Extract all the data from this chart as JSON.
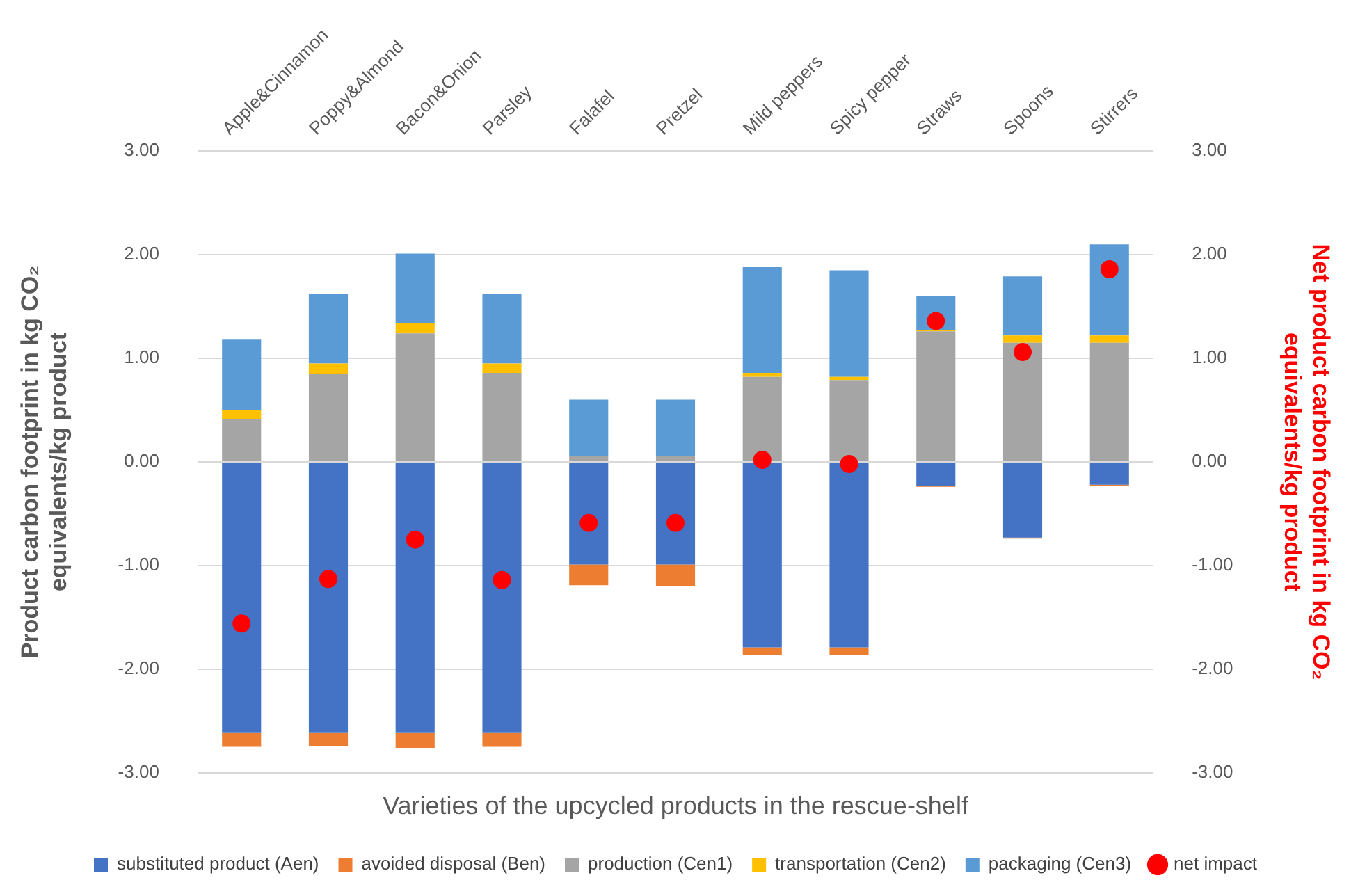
{
  "chart_data": {
    "type": "bar",
    "stacked": true,
    "xlabel": "Varieties of the upcycled products in the rescue-shelf",
    "ylabel": "Product carbon footprint in kg CO₂ equivalents/kg product",
    "y2label": "Net product carbon footprint in kg CO₂ equivalents/kg product",
    "categories": [
      "Apple&Cinnamon",
      "Poppy&Almond",
      "Bacon&Onion",
      "Parsley",
      "Falafel",
      "Pretzel",
      "Mild peppers",
      "Spicy pepper",
      "Straws",
      "Spoons",
      "Stirrers"
    ],
    "series": [
      {
        "name": "substituted product (Aen)",
        "color": "#4472c4",
        "values": [
          -2.61,
          -2.61,
          -2.61,
          -2.61,
          -0.99,
          -0.99,
          -1.79,
          -1.79,
          -0.23,
          -0.73,
          -0.22
        ]
      },
      {
        "name": "avoided disposal (Ben)",
        "color": "#ed7d31",
        "values": [
          -0.14,
          -0.13,
          -0.15,
          -0.14,
          -0.2,
          -0.21,
          -0.07,
          -0.07,
          -0.01,
          -0.01,
          -0.01
        ]
      },
      {
        "name": "production (Cen1)",
        "color": "#a5a5a5",
        "values": [
          0.41,
          0.85,
          1.24,
          0.86,
          0.06,
          0.06,
          0.82,
          0.79,
          1.26,
          1.15,
          1.15
        ]
      },
      {
        "name": "transportation (Cen2)",
        "color": "#ffc000",
        "values": [
          0.09,
          0.1,
          0.1,
          0.09,
          0,
          0,
          0.04,
          0.03,
          0.01,
          0.07,
          0.07
        ]
      },
      {
        "name": "packaging (Cen3)",
        "color": "#5b9bd5",
        "values": [
          0.68,
          0.67,
          0.67,
          0.67,
          0.54,
          0.54,
          1.02,
          1.03,
          0.33,
          0.57,
          0.88
        ]
      },
      {
        "name": "net impact",
        "type": "scatter",
        "axis": "y2",
        "marker": "circle",
        "color": "#ff0000",
        "values": [
          -1.56,
          -1.13,
          -0.75,
          -1.14,
          -0.59,
          -0.59,
          0.02,
          -0.02,
          1.36,
          1.06,
          1.86
        ]
      }
    ],
    "ylim": [
      -3,
      3
    ],
    "yticks": [
      {
        "value": -3,
        "label": "-3.00"
      },
      {
        "value": -2,
        "label": "-2.00"
      },
      {
        "value": -1,
        "label": "-1.00"
      },
      {
        "value": 0,
        "label": "0.00"
      },
      {
        "value": 1,
        "label": "1.00"
      },
      {
        "value": 2,
        "label": "2.00"
      },
      {
        "value": 3,
        "label": "3.00"
      }
    ],
    "y2lim": [
      -3,
      3
    ],
    "y2ticks": [
      {
        "value": -3,
        "label": "-3.00"
      },
      {
        "value": -2,
        "label": "-2.00"
      },
      {
        "value": -1,
        "label": "-1.00"
      },
      {
        "value": 0,
        "label": "0.00"
      },
      {
        "value": 1,
        "label": "1.00"
      },
      {
        "value": 2,
        "label": "2.00"
      },
      {
        "value": 3,
        "label": "3.00"
      }
    ],
    "grid": "y",
    "legend": "bottom"
  }
}
